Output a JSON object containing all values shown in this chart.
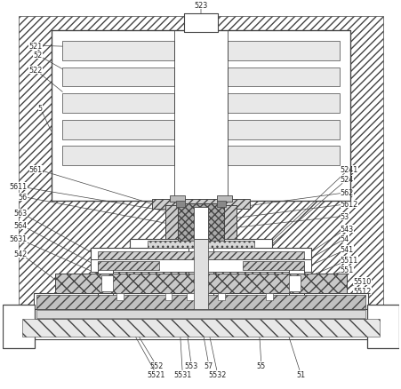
{
  "fig_width": 4.52,
  "fig_height": 4.39,
  "dpi": 100,
  "bg": "white",
  "lc": "#444444",
  "fc_white": "white",
  "fc_hatch": "#f0f0f0",
  "fc_gray": "#cccccc",
  "fc_dark": "#aaaaaa",
  "label_fs": 5.8,
  "label_color": "#222222"
}
